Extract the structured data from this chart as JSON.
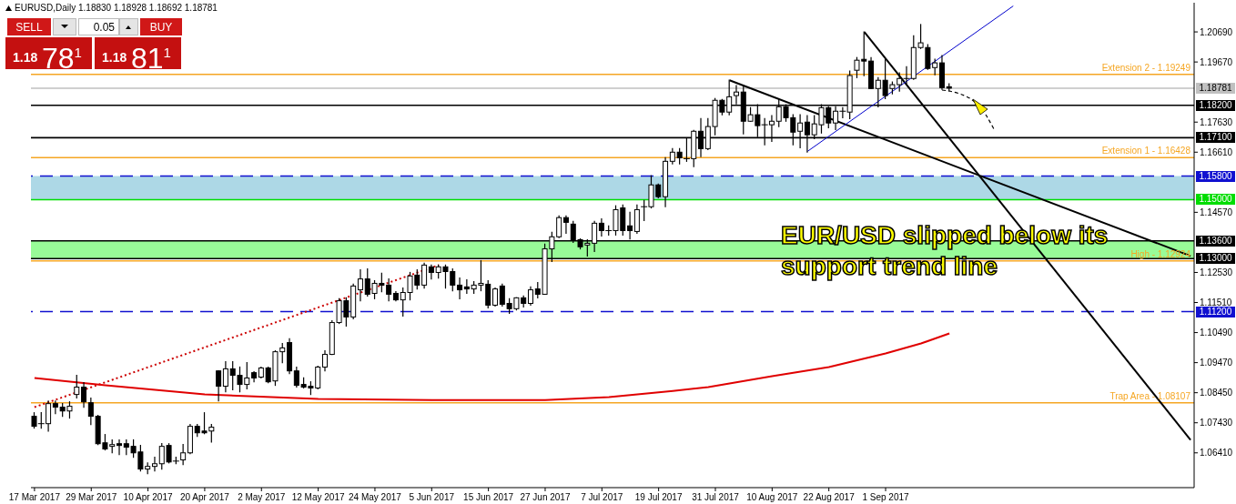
{
  "chart_data": {
    "type": "candlestick",
    "title": "EURUSD,Daily 1.18830 1.18928 1.18692 1.18781",
    "categories": [
      "17 Mar 2017",
      null,
      null,
      null,
      null,
      null,
      null,
      null,
      "29 Mar 2017",
      null,
      null,
      null,
      null,
      null,
      null,
      null,
      "10 Apr 2017",
      null,
      null,
      null,
      null,
      null,
      null,
      null,
      "20 Apr 2017",
      null,
      null,
      null,
      null,
      null,
      null,
      null,
      "2 May 2017",
      null,
      null,
      null,
      null,
      null,
      null,
      null,
      "12 May 2017",
      null,
      null,
      null,
      null,
      null,
      null,
      null,
      "24 May 2017",
      null,
      null,
      null,
      null,
      null,
      null,
      null,
      "5 Jun 2017",
      null,
      null,
      null,
      null,
      null,
      null,
      null,
      "15 Jun 2017",
      null,
      null,
      null,
      null,
      null,
      null,
      null,
      "27 Jun 2017",
      null,
      null,
      null,
      null,
      null,
      null,
      null,
      "7 Jul 2017",
      null,
      null,
      null,
      null,
      null,
      null,
      null,
      "19 Jul 2017",
      null,
      null,
      null,
      null,
      null,
      null,
      null,
      "31 Jul 2017",
      null,
      null,
      null,
      null,
      null,
      null,
      null,
      "10 Aug 2017",
      null,
      null,
      null,
      null,
      null,
      null,
      null,
      "22 Aug 2017",
      null,
      null,
      null,
      null,
      null,
      null,
      null,
      "1 Sep 2017",
      null,
      null,
      null,
      null,
      null,
      null,
      null,
      null,
      null,
      null,
      null,
      null,
      null,
      null,
      null,
      null,
      null,
      null,
      null,
      null,
      null,
      null,
      null,
      null,
      null,
      null,
      null,
      null,
      null,
      null,
      null,
      null,
      null,
      null,
      null,
      null,
      null,
      null,
      null,
      null,
      null,
      null,
      null
    ],
    "ohlc": [
      [
        1.0765,
        1.0777,
        1.0725,
        1.0731
      ],
      [
        1.074,
        1.0777,
        1.0725,
        1.074
      ],
      [
        1.074,
        1.0817,
        1.0715,
        1.0808
      ],
      [
        1.0808,
        1.0817,
        1.0774,
        1.0796
      ],
      [
        1.0796,
        1.0808,
        1.0765,
        1.0783
      ],
      [
        1.0783,
        1.0814,
        1.0759,
        1.0799
      ],
      [
        1.0839,
        1.0904,
        1.0827,
        1.0864
      ],
      [
        1.0864,
        1.0879,
        1.0796,
        1.0814
      ],
      [
        1.0811,
        1.0827,
        1.0737,
        1.0765
      ],
      [
        1.0765,
        1.0768,
        1.0669,
        1.0672
      ],
      [
        1.0675,
        1.0703,
        1.0651,
        1.0654
      ],
      [
        1.0663,
        1.0685,
        1.0641,
        1.0669
      ],
      [
        1.0672,
        1.0685,
        1.0635,
        1.0666
      ],
      [
        1.0672,
        1.0685,
        1.0635,
        1.066
      ],
      [
        1.0663,
        1.0685,
        1.0626,
        1.0641
      ],
      [
        1.0644,
        1.0666,
        1.058,
        1.0586
      ],
      [
        1.0586,
        1.0607,
        1.057,
        1.0595
      ],
      [
        1.0595,
        1.0626,
        1.058,
        1.0604
      ],
      [
        1.0604,
        1.0672,
        1.0586,
        1.0663
      ],
      [
        1.0666,
        1.0672,
        1.0607,
        1.061
      ],
      [
        1.0613,
        1.0626,
        1.0604,
        1.0613
      ],
      [
        1.0617,
        1.0669,
        1.0601,
        1.0641
      ],
      [
        1.0641,
        1.0737,
        1.0638,
        1.0731
      ],
      [
        1.0731,
        1.0737,
        1.0697,
        1.0709
      ],
      [
        1.0715,
        1.0777,
        1.0706,
        1.0709
      ],
      [
        1.0715,
        1.0737,
        1.0678,
        1.0728
      ],
      [
        1.0919,
        1.0919,
        1.0817,
        1.0867
      ],
      [
        1.0867,
        1.095,
        1.0848,
        1.0926
      ],
      [
        1.0926,
        1.095,
        1.0855,
        1.0904
      ],
      [
        1.0904,
        1.0932,
        1.0848,
        1.0873
      ],
      [
        1.0873,
        1.0947,
        1.0858,
        1.0895
      ],
      [
        1.0913,
        1.0916,
        1.0882,
        1.0895
      ],
      [
        1.0898,
        1.0932,
        1.0895,
        1.0929
      ],
      [
        1.0929,
        1.0932,
        1.0879,
        1.0882
      ],
      [
        1.0885,
        1.0987,
        1.087,
        1.0984
      ],
      [
        1.0984,
        1.1012,
        1.0947,
        1.0997
      ],
      [
        1.1015,
        1.1028,
        1.091,
        1.0919
      ],
      [
        1.0919,
        1.0932,
        1.0864,
        1.087
      ],
      [
        1.0873,
        1.0895,
        1.0861,
        1.0864
      ],
      [
        1.0867,
        1.0882,
        1.0839,
        1.0861
      ],
      [
        1.0861,
        1.0935,
        1.0858,
        1.0932
      ],
      [
        1.0932,
        1.0987,
        1.0919,
        1.0975
      ],
      [
        1.0975,
        1.1089,
        1.0975,
        1.1083
      ],
      [
        1.1083,
        1.1164,
        1.108,
        1.1157
      ],
      [
        1.1157,
        1.1167,
        1.1071,
        1.1102
      ],
      [
        1.1102,
        1.1213,
        1.1096,
        1.1207
      ],
      [
        1.1194,
        1.1262,
        1.1157,
        1.1231
      ],
      [
        1.1231,
        1.1265,
        1.1173,
        1.1179
      ],
      [
        1.1182,
        1.1225,
        1.1164,
        1.1216
      ],
      [
        1.1216,
        1.125,
        1.1188,
        1.121
      ],
      [
        1.121,
        1.1231,
        1.1157,
        1.1179
      ],
      [
        1.1182,
        1.1188,
        1.1157,
        1.116
      ],
      [
        1.116,
        1.12,
        1.1105,
        1.1185
      ],
      [
        1.1185,
        1.1253,
        1.116,
        1.1241
      ],
      [
        1.1244,
        1.1262,
        1.1197,
        1.121
      ],
      [
        1.121,
        1.1284,
        1.12,
        1.1278
      ],
      [
        1.1272,
        1.1278,
        1.1231,
        1.1253
      ],
      [
        1.1253,
        1.1278,
        1.1234,
        1.1272
      ],
      [
        1.1272,
        1.1278,
        1.12,
        1.1256
      ],
      [
        1.1256,
        1.1265,
        1.1191,
        1.121
      ],
      [
        1.121,
        1.1234,
        1.1164,
        1.1194
      ],
      [
        1.1204,
        1.1228,
        1.1182,
        1.1197
      ],
      [
        1.1197,
        1.1222,
        1.1182,
        1.121
      ],
      [
        1.121,
        1.1293,
        1.1191,
        1.1216
      ],
      [
        1.1213,
        1.1225,
        1.1133,
        1.1142
      ],
      [
        1.1142,
        1.12,
        1.1139,
        1.1197
      ],
      [
        1.1207,
        1.1213,
        1.1139,
        1.1145
      ],
      [
        1.1148,
        1.1164,
        1.1114,
        1.113
      ],
      [
        1.113,
        1.1167,
        1.1126,
        1.1167
      ],
      [
        1.1167,
        1.1173,
        1.1136,
        1.1148
      ],
      [
        1.1148,
        1.1204,
        1.1142,
        1.1194
      ],
      [
        1.1197,
        1.1219,
        1.1167,
        1.1179
      ],
      [
        1.1179,
        1.1349,
        1.1179,
        1.1333
      ],
      [
        1.1333,
        1.1389,
        1.129,
        1.1374
      ],
      [
        1.1374,
        1.1445,
        1.1371,
        1.1439
      ],
      [
        1.1439,
        1.1445,
        1.1386,
        1.1423
      ],
      [
        1.1417,
        1.1426,
        1.1355,
        1.1364
      ],
      [
        1.1364,
        1.1367,
        1.1333,
        1.134
      ],
      [
        1.1346,
        1.1364,
        1.1309,
        1.1352
      ],
      [
        1.1352,
        1.1426,
        1.1324,
        1.142
      ],
      [
        1.142,
        1.1435,
        1.1377,
        1.1395
      ],
      [
        1.1395,
        1.1411,
        1.138,
        1.1395
      ],
      [
        1.1395,
        1.1479,
        1.138,
        1.1466
      ],
      [
        1.1472,
        1.1482,
        1.138,
        1.1395
      ],
      [
        1.1411,
        1.1457,
        1.1367,
        1.1395
      ],
      [
        1.1392,
        1.1482,
        1.1386,
        1.1466
      ],
      [
        1.1476,
        1.1497,
        1.1429,
        1.1476
      ],
      [
        1.1476,
        1.1581,
        1.1472,
        1.155
      ],
      [
        1.155,
        1.1553,
        1.1506,
        1.151
      ],
      [
        1.151,
        1.1642,
        1.1476,
        1.163
      ],
      [
        1.163,
        1.1673,
        1.1621,
        1.1661
      ],
      [
        1.1661,
        1.1673,
        1.1621,
        1.1642
      ],
      [
        1.1639,
        1.1707,
        1.163,
        1.1639
      ],
      [
        1.1639,
        1.1735,
        1.1612,
        1.1732
      ],
      [
        1.1732,
        1.1775,
        1.1646,
        1.1673
      ],
      [
        1.1673,
        1.1775,
        1.167,
        1.1748
      ],
      [
        1.1748,
        1.1843,
        1.172,
        1.1837
      ],
      [
        1.1837,
        1.184,
        1.1788,
        1.1797
      ],
      [
        1.1797,
        1.1905,
        1.1788,
        1.1849
      ],
      [
        1.1853,
        1.1887,
        1.1825,
        1.1865
      ],
      [
        1.1865,
        1.1883,
        1.1723,
        1.1766
      ],
      [
        1.1766,
        1.1812,
        1.1766,
        1.1788
      ],
      [
        1.1788,
        1.1822,
        1.1714,
        1.1751
      ],
      [
        1.1751,
        1.1775,
        1.1686,
        1.1754
      ],
      [
        1.1754,
        1.1785,
        1.1698,
        1.1766
      ],
      [
        1.1766,
        1.184,
        1.1748,
        1.1815
      ],
      [
        1.1815,
        1.1822,
        1.1766,
        1.1778
      ],
      [
        1.1778,
        1.1788,
        1.1686,
        1.1729
      ],
      [
        1.1732,
        1.1788,
        1.1676,
        1.176
      ],
      [
        1.1763,
        1.1785,
        1.1661,
        1.172
      ],
      [
        1.172,
        1.1785,
        1.1707,
        1.1757
      ],
      [
        1.1754,
        1.1822,
        1.1726,
        1.1812
      ],
      [
        1.1812,
        1.1815,
        1.1744,
        1.176
      ],
      [
        1.176,
        1.1815,
        1.1738,
        1.18
      ],
      [
        1.18,
        1.1812,
        1.1778,
        1.18
      ],
      [
        1.1797,
        1.1936,
        1.1775,
        1.1921
      ],
      [
        1.1939,
        1.1982,
        1.1914,
        1.1973
      ],
      [
        1.1976,
        1.2069,
        1.1921,
        1.197
      ],
      [
        1.197,
        1.1982,
        1.1877,
        1.1877
      ],
      [
        1.1877,
        1.1914,
        1.1815,
        1.1905
      ],
      [
        1.1905,
        1.1976,
        1.1843,
        1.1853
      ],
      [
        1.1877,
        1.1899,
        1.1859,
        1.189
      ],
      [
        1.189,
        1.193,
        1.1868,
        1.1911
      ],
      [
        1.1911,
        1.1951,
        1.1893,
        1.1911
      ],
      [
        1.1911,
        1.2056,
        1.1908,
        1.2016
      ],
      [
        1.2016,
        1.2094,
        1.2013,
        1.2032
      ],
      [
        1.2016,
        1.2026,
        1.1942,
        1.1945
      ],
      [
        1.1948,
        1.1976,
        1.1924,
        1.1964
      ],
      [
        1.1964,
        1.1989,
        1.1874,
        1.188
      ],
      [
        1.1883,
        1.18928,
        1.18692,
        1.18781
      ],
      null,
      null,
      null,
      null,
      null,
      null,
      null,
      null,
      null,
      null,
      null,
      null,
      null,
      null,
      null,
      null,
      null,
      null,
      null,
      null,
      null,
      null,
      null,
      null,
      null,
      null,
      null,
      null,
      null,
      null,
      null,
      null,
      null,
      null
    ],
    "series": [
      {
        "type": "line",
        "color": "#000000",
        "values": [
          null,
          null,
          null,
          null,
          null,
          null,
          null,
          null,
          null,
          null,
          null,
          null,
          null,
          null,
          null,
          null,
          null,
          null,
          null,
          null,
          null,
          null,
          null,
          null,
          null,
          null,
          null,
          null,
          null,
          null,
          null,
          null,
          null,
          null,
          null,
          null,
          null,
          null,
          null,
          null,
          null,
          null,
          null,
          null,
          null,
          null,
          null,
          null,
          null,
          null,
          null,
          null,
          null,
          null,
          null,
          null,
          null,
          null,
          null,
          null,
          null,
          null,
          null,
          null,
          null,
          null,
          null,
          null,
          null,
          null,
          null,
          null,
          null,
          null,
          null,
          null,
          null,
          null,
          null,
          null,
          null,
          null,
          null,
          null,
          null,
          null,
          null,
          null,
          null,
          null,
          null,
          null,
          null,
          null,
          null,
          null,
          null,
          null,
          1.1905,
          null,
          null,
          null,
          null,
          null,
          null,
          null,
          null,
          null,
          null,
          null,
          null,
          null,
          null,
          null,
          null,
          null,
          null,
          null,
          null,
          null,
          null,
          null,
          null,
          null,
          null,
          null,
          null,
          null,
          null,
          null,
          null,
          null,
          null,
          null,
          null,
          null,
          null,
          null,
          null,
          null,
          null,
          null,
          null,
          null,
          null,
          null,
          null,
          null,
          null,
          null,
          null,
          null,
          null,
          null,
          null,
          null,
          null,
          null,
          null,
          null,
          null,
          null,
          null,
          1.1309
        ]
      },
      {
        "type": "line",
        "color": "#000000",
        "values": [
          null,
          null,
          null,
          null,
          null,
          null,
          null,
          null,
          null,
          null,
          null,
          null,
          null,
          null,
          null,
          null,
          null,
          null,
          null,
          null,
          null,
          null,
          null,
          null,
          null,
          null,
          null,
          null,
          null,
          null,
          null,
          null,
          null,
          null,
          null,
          null,
          null,
          null,
          null,
          null,
          null,
          null,
          null,
          null,
          null,
          null,
          null,
          null,
          null,
          null,
          null,
          null,
          null,
          null,
          null,
          null,
          null,
          null,
          null,
          null,
          null,
          null,
          null,
          null,
          null,
          null,
          null,
          null,
          null,
          null,
          null,
          null,
          null,
          null,
          null,
          null,
          null,
          null,
          null,
          null,
          null,
          null,
          null,
          null,
          null,
          null,
          null,
          null,
          null,
          null,
          null,
          null,
          null,
          null,
          null,
          null,
          null,
          null,
          null,
          null,
          null,
          null,
          null,
          null,
          null,
          null,
          null,
          null,
          null,
          null,
          null,
          null,
          null,
          null,
          null,
          null,
          null,
          1.2069,
          null,
          null,
          null,
          null,
          null,
          null,
          null,
          null,
          null,
          null,
          null,
          null,
          null,
          null,
          null,
          null,
          null,
          null,
          null,
          null,
          null,
          null,
          null,
          null,
          null,
          null,
          null,
          null,
          null,
          null,
          null,
          null,
          null,
          null,
          null,
          null,
          null,
          null,
          null,
          null,
          null,
          null,
          null,
          null,
          null,
          1.0685
        ]
      },
      {
        "type": "line",
        "color": "#0000cc",
        "values": [
          null,
          null,
          null,
          null,
          null,
          null,
          null,
          null,
          null,
          null,
          null,
          null,
          null,
          null,
          null,
          null,
          null,
          null,
          null,
          null,
          null,
          null,
          null,
          null,
          null,
          null,
          null,
          null,
          null,
          null,
          null,
          null,
          null,
          null,
          null,
          null,
          null,
          null,
          null,
          null,
          null,
          null,
          null,
          null,
          null,
          null,
          null,
          null,
          null,
          null,
          null,
          null,
          null,
          null,
          null,
          null,
          null,
          null,
          null,
          null,
          null,
          null,
          null,
          null,
          null,
          null,
          null,
          null,
          null,
          null,
          null,
          null,
          null,
          null,
          null,
          null,
          null,
          null,
          null,
          null,
          null,
          null,
          null,
          null,
          null,
          null,
          null,
          null,
          null,
          null,
          null,
          null,
          null,
          null,
          null,
          null,
          null,
          null,
          null,
          null,
          null,
          null,
          null,
          null,
          null,
          null,
          null,
          null,
          null,
          1.1664,
          null,
          null,
          null,
          null,
          null,
          null,
          null,
          null,
          null,
          null,
          null,
          null,
          null,
          null,
          null,
          null,
          null,
          null,
          null,
          null,
          null,
          null,
          null,
          null,
          null,
          null,
          null,
          null,
          1.2157,
          null,
          null,
          null,
          null,
          null,
          null,
          null,
          null,
          null,
          null,
          null,
          null,
          null,
          null,
          null,
          null,
          null,
          null,
          null,
          null,
          null,
          null,
          null,
          null,
          null
        ]
      },
      {
        "type": "line",
        "color": "#cc0000",
        "line_style": "dotted",
        "values": [
          1.0796,
          null,
          null,
          null,
          null,
          null,
          null,
          null,
          null,
          null,
          null,
          null,
          null,
          null,
          null,
          null,
          null,
          null,
          null,
          null,
          null,
          null,
          null,
          null,
          null,
          null,
          null,
          null,
          null,
          null,
          null,
          null,
          null,
          null,
          null,
          null,
          null,
          null,
          null,
          null,
          null,
          null,
          null,
          null,
          null,
          null,
          null,
          null,
          null,
          null,
          null,
          null,
          null,
          null,
          null,
          null,
          null,
          1.1278,
          null,
          null,
          null,
          null,
          null,
          null,
          null,
          null,
          null,
          null,
          null,
          null,
          null,
          null,
          null,
          null,
          null,
          null,
          null,
          null,
          null,
          null,
          null,
          null,
          null,
          null,
          null,
          null,
          null,
          null,
          null,
          null,
          null,
          null,
          null,
          null,
          null,
          null,
          null,
          null,
          null,
          null,
          null,
          null,
          null,
          null,
          null,
          null,
          null,
          null,
          null,
          null,
          null,
          null,
          null,
          null,
          null,
          null,
          null,
          null,
          null,
          null,
          null,
          null,
          null,
          null,
          null,
          null,
          null,
          null,
          null,
          null,
          null,
          null,
          null,
          null,
          null,
          null,
          null,
          null,
          null,
          null,
          null,
          null,
          null,
          null,
          null,
          null,
          null,
          null,
          null,
          null,
          null,
          null,
          null,
          null,
          null,
          null,
          null,
          null,
          null,
          null,
          null,
          null,
          null,
          null
        ]
      },
      {
        "type": "line",
        "color": "#e00000",
        "values": [
          1.0895,
          null,
          null,
          null,
          null,
          null,
          null,
          null,
          null,
          null,
          1.087,
          null,
          null,
          null,
          null,
          null,
          null,
          null,
          null,
          null,
          null,
          null,
          null,
          null,
          1.0839,
          null,
          null,
          null,
          null,
          null,
          null,
          null,
          null,
          null,
          null,
          null,
          null,
          null,
          null,
          null,
          1.0824,
          null,
          null,
          null,
          null,
          null,
          null,
          null,
          null,
          null,
          null,
          null,
          null,
          null,
          null,
          null,
          1.082,
          null,
          null,
          null,
          null,
          null,
          null,
          null,
          null,
          null,
          null,
          null,
          null,
          null,
          null,
          null,
          1.082,
          null,
          null,
          null,
          null,
          null,
          null,
          null,
          null,
          1.083,
          null,
          null,
          null,
          null,
          null,
          null,
          null,
          null,
          1.0851,
          null,
          null,
          null,
          null,
          1.0864,
          null,
          null,
          null,
          null,
          null,
          null,
          null,
          null,
          1.0901,
          null,
          null,
          null,
          null,
          null,
          null,
          null,
          1.0932,
          null,
          null,
          null,
          null,
          null,
          null,
          null,
          1.0978,
          null,
          null,
          null,
          null,
          1.1012,
          null,
          null,
          null,
          1.1046,
          null,
          null,
          null,
          null,
          null,
          null,
          null,
          null,
          null,
          null,
          null,
          null,
          null,
          null,
          null,
          null,
          null,
          null,
          null,
          null,
          null,
          null,
          null,
          null,
          null,
          null,
          null,
          null,
          null,
          null,
          null,
          null,
          null,
          null
        ]
      }
    ],
    "ylim": [
      1.0523,
      1.2168
    ],
    "yticks": [
      {
        "value": 1.2069,
        "label": "1.20690"
      },
      {
        "value": 1.1967,
        "label": "1.19670"
      },
      {
        "value": 1.1763,
        "label": "1.17630"
      },
      {
        "value": 1.1661,
        "label": "1.16610"
      },
      {
        "value": 1.1457,
        "label": "1.14570"
      },
      {
        "value": 1.1253,
        "label": "1.12530"
      },
      {
        "value": 1.1151,
        "label": "1.11510"
      },
      {
        "value": 1.1049,
        "label": "1.10490"
      },
      {
        "value": 1.0947,
        "label": "1.09470"
      },
      {
        "value": 1.0845,
        "label": "1.08450"
      },
      {
        "value": 1.0743,
        "label": "1.07430"
      },
      {
        "value": 1.0641,
        "label": "1.06410"
      }
    ],
    "ref_lines": [
      {
        "axis": "y",
        "value": 1.19249,
        "color": "#f5a623"
      },
      {
        "axis": "y",
        "value": 1.18781,
        "label": "1.18781",
        "color": "#c0c0c0"
      },
      {
        "axis": "y",
        "value": 1.182,
        "label": "1.18200",
        "color": "#000000"
      },
      {
        "axis": "y",
        "value": 1.171,
        "label": "1.17100",
        "color": "#000000"
      },
      {
        "axis": "y",
        "value": 1.16428,
        "color": "#f5a623"
      },
      {
        "axis": "y",
        "value": 1.158,
        "label": "1.15800",
        "color": "#1010d0",
        "line_style": "dashed"
      },
      {
        "axis": "y",
        "value": 1.15,
        "label": "1.15000",
        "color": "#00dd00"
      },
      {
        "axis": "y",
        "value": 1.136,
        "label": "1.13600",
        "color": "#000000"
      },
      {
        "axis": "y",
        "value": 1.13,
        "label": "1.13000",
        "color": "#000000"
      },
      {
        "axis": "y",
        "value": 1.12924,
        "color": "#f5a623"
      },
      {
        "axis": "y",
        "value": 1.112,
        "label": "1.11200",
        "color": "#1010d0",
        "line_style": "dashed"
      },
      {
        "axis": "y",
        "value": 1.08107,
        "color": "#f5a623"
      }
    ],
    "bands": [
      {
        "axis": "y",
        "from": 1.13,
        "to": 1.136,
        "color": "#98fb98"
      },
      {
        "axis": "y",
        "from": 1.15,
        "to": 1.158,
        "color": "#add8e6"
      }
    ],
    "annotations": [
      "EUR/USD slipped below its support trend line",
      "SELL",
      "0.05",
      "BUY",
      "1.18",
      "78$^{1}$",
      "1.18",
      "81$^{1}$",
      {
        "text": "Extension 2 - 1.19249",
        "y": 1.19249
      },
      {
        "text": "Extension 1 - 1.16428",
        "y": 1.16428
      },
      {
        "text": "High - 1.12924",
        "y": 1.12924
      },
      {
        "text": "Trap Area - 1.08107",
        "y": 1.08107
      }
    ]
  }
}
